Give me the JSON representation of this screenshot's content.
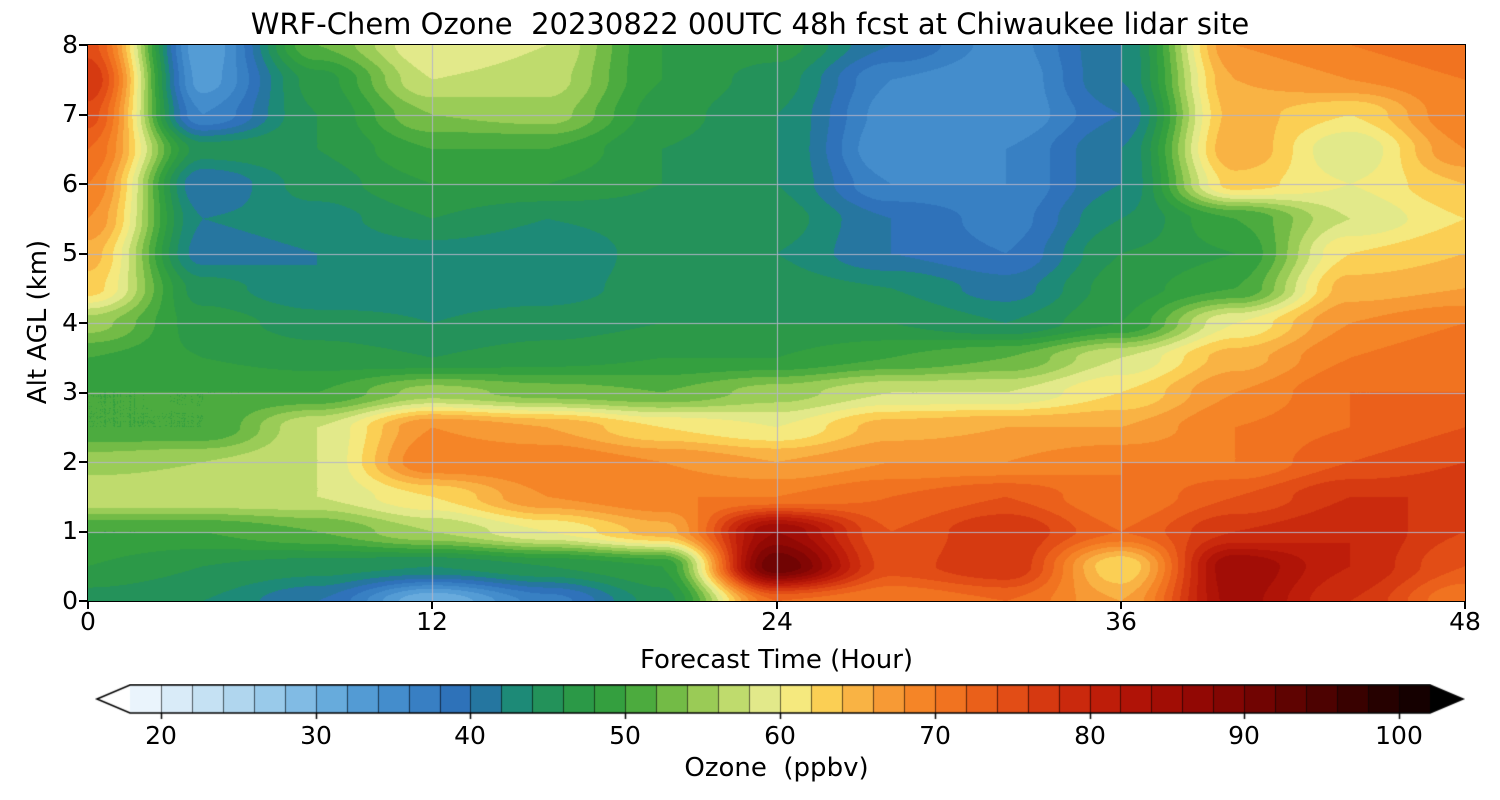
{
  "chart_data": {
    "type": "heatmap",
    "title": "WRF-Chem Ozone  20230822 00UTC 48h fcst at Chiwaukee lidar site",
    "xlabel": "Forecast Time (Hour)",
    "ylabel": "Alt AGL (km)",
    "colorbar_label": "Ozone  (ppbv)",
    "xlim": [
      0,
      48
    ],
    "ylim": [
      0,
      8
    ],
    "xticks": [
      0,
      12,
      24,
      36,
      48
    ],
    "yticks": [
      0,
      1,
      2,
      3,
      4,
      5,
      6,
      7,
      8
    ],
    "grid": true,
    "grid_x": [
      12,
      24,
      36
    ],
    "grid_y": [
      1,
      2,
      3,
      4,
      5,
      6,
      7
    ],
    "grid_color": "#b4b4c8",
    "contour_interval": 2,
    "colorbar_ticks": [
      20,
      30,
      40,
      50,
      60,
      70,
      80,
      90,
      100
    ],
    "colorbar_range": [
      18,
      102
    ],
    "hours": [
      0,
      4,
      8,
      12,
      16,
      20,
      24,
      28,
      32,
      36,
      40,
      44,
      48
    ],
    "altitudes_km": [
      0,
      0.5,
      1,
      1.5,
      2,
      2.5,
      3,
      3.5,
      4,
      4.5,
      5,
      5.5,
      6,
      6.5,
      7,
      7.5,
      8
    ],
    "ozone_ppbv": [
      [
        45,
        44,
        40,
        30,
        37,
        45,
        72,
        70,
        72,
        66,
        85,
        78,
        70
      ],
      [
        48,
        46,
        45,
        44,
        46,
        48,
        92,
        75,
        78,
        62,
        86,
        80,
        74
      ],
      [
        50,
        50,
        52,
        56,
        60,
        65,
        86,
        74,
        78,
        72,
        78,
        80,
        76
      ],
      [
        58,
        58,
        58,
        62,
        68,
        70,
        70,
        72,
        74,
        70,
        74,
        78,
        78
      ],
      [
        55,
        56,
        58,
        70,
        70,
        68,
        66,
        68,
        68,
        70,
        70,
        74,
        76
      ],
      [
        50,
        50,
        58,
        68,
        66,
        62,
        60,
        65,
        66,
        66,
        70,
        72,
        74
      ],
      [
        50,
        50,
        50,
        55,
        53,
        52,
        55,
        58,
        58,
        62,
        68,
        72,
        72
      ],
      [
        50,
        48,
        47,
        46,
        47,
        48,
        48,
        50,
        52,
        58,
        65,
        70,
        72
      ],
      [
        55,
        47,
        45,
        44,
        45,
        46,
        46,
        46,
        44,
        48,
        60,
        68,
        70
      ],
      [
        63,
        45,
        42,
        43,
        43,
        45,
        45,
        44,
        41,
        47,
        50,
        65,
        66
      ],
      [
        65,
        41,
        42,
        43,
        42,
        45,
        44,
        40,
        38,
        46,
        48,
        62,
        64
      ],
      [
        68,
        42,
        43,
        46,
        44,
        45,
        45,
        40,
        37,
        44,
        50,
        58,
        62
      ],
      [
        70,
        40,
        45,
        48,
        48,
        46,
        44,
        36,
        36,
        42,
        63,
        60,
        64
      ],
      [
        72,
        45,
        46,
        50,
        50,
        46,
        44,
        34,
        36,
        42,
        66,
        58,
        68
      ],
      [
        75,
        36,
        46,
        54,
        55,
        47,
        44,
        35,
        34,
        40,
        65,
        62,
        70
      ],
      [
        78,
        33,
        47,
        58,
        57,
        48,
        45,
        36,
        34,
        42,
        66,
        68,
        70
      ],
      [
        75,
        32,
        52,
        60,
        58,
        48,
        47,
        40,
        35,
        42,
        68,
        70,
        72
      ]
    ],
    "colormap_stops": [
      [
        16,
        "#ffffff"
      ],
      [
        20,
        "#e3f1fb"
      ],
      [
        24,
        "#bcdcf1"
      ],
      [
        28,
        "#8ec4e8"
      ],
      [
        32,
        "#5ba3d9"
      ],
      [
        36,
        "#3d86c8"
      ],
      [
        40,
        "#2a6cb5"
      ],
      [
        43,
        "#1d8a77"
      ],
      [
        46,
        "#27964c"
      ],
      [
        50,
        "#39a33b"
      ],
      [
        53,
        "#73bb46"
      ],
      [
        56,
        "#aed45f"
      ],
      [
        59,
        "#e2e98a"
      ],
      [
        61,
        "#f5e97e"
      ],
      [
        63,
        "#fbcf54"
      ],
      [
        66,
        "#f8a53c"
      ],
      [
        69,
        "#f58527"
      ],
      [
        72,
        "#ef6a1d"
      ],
      [
        75,
        "#e24d16"
      ],
      [
        78,
        "#d0300f"
      ],
      [
        82,
        "#b81708"
      ],
      [
        86,
        "#9a0a05"
      ],
      [
        90,
        "#7a0503"
      ],
      [
        95,
        "#4d0201"
      ],
      [
        100,
        "#1d0100"
      ],
      [
        104,
        "#000000"
      ]
    ]
  }
}
